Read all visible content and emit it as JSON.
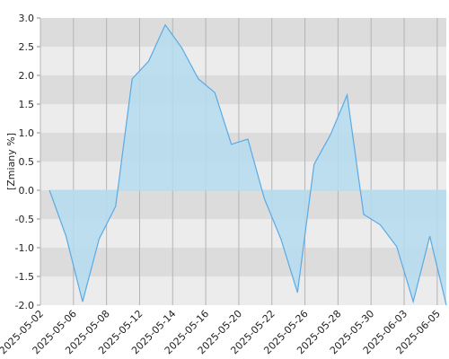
{
  "chart_data": {
    "type": "area",
    "y_label": "[Zmiany %]",
    "categories": [
      "2025-05-02",
      null,
      "2025-05-06",
      null,
      "2025-05-08",
      null,
      "2025-05-12",
      null,
      "2025-05-14",
      null,
      "2025-05-16",
      null,
      "2025-05-20",
      null,
      "2025-05-22",
      null,
      "2025-05-26",
      null,
      "2025-05-28",
      null,
      "2025-05-30",
      null,
      "2025-06-03",
      null,
      "2025-06-05"
    ],
    "values": [
      0,
      -0.8,
      -1.94,
      -0.85,
      -0.28,
      1.94,
      2.25,
      2.88,
      2.48,
      1.94,
      1.7,
      0.8,
      0.89,
      -0.15,
      -0.85,
      -1.78,
      0.45,
      0.97,
      1.66,
      -0.42,
      -0.6,
      -0.98,
      -1.94,
      -0.8,
      -2.0
    ],
    "color": "#5aaae6",
    "fill": "#b4dcef",
    "ylim": [
      -2.0,
      3.0
    ],
    "yticks": [
      {
        "value": -2,
        "label": "-2.0"
      },
      -1.5,
      {
        "value": -1,
        "label": "-1.0"
      },
      -0.5,
      {
        "value": 0,
        "label": "0.0"
      },
      0.5,
      {
        "value": 1,
        "label": "1.0"
      },
      1.5,
      {
        "value": 2,
        "label": "2.0"
      },
      2.5,
      {
        "value": 3,
        "label": "3.0"
      }
    ],
    "band_colors": [
      "#dcdcdc",
      "#ececec"
    ],
    "grid": true
  }
}
